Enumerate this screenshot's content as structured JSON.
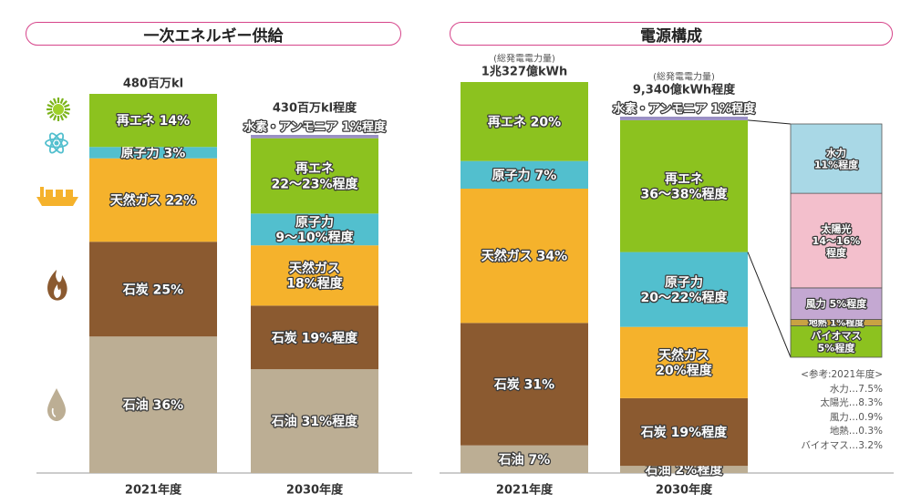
{
  "panels": {
    "left_title": "一次エネルギー供給",
    "right_title": "電源構成"
  },
  "reference": {
    "heading": "<参考:2021年度>",
    "items": [
      "水力…7.5%",
      "太陽光…8.3%",
      "風力…0.9%",
      "地熱…0.3%",
      "バイオマス…3.2%"
    ]
  },
  "icons": [
    "sun-icon",
    "atom-icon",
    "lng-ship-icon",
    "flame-icon",
    "oil-drop-icon"
  ],
  "colors": {
    "renewable": "#8cc21f",
    "nuclear": "#52bfce",
    "gas": "#f5b22c",
    "coal": "#8b5a30",
    "oil": "#bcae94",
    "hydrogen": "#9a90c4",
    "hydro": "#a9d8e6",
    "solar": "#f3bfcc",
    "wind": "#c4a8d2",
    "geothermal": "#c9a243",
    "biomass": "#8cc21f"
  },
  "chart_data": [
    {
      "type": "stacked-bar",
      "title": "一次エネルギー供給",
      "categories": [
        "2021年度",
        "2030年度"
      ],
      "totals": [
        "480百万kl",
        "430百万kl程度"
      ],
      "series": [
        {
          "name": "石油",
          "values": [
            36,
            31
          ],
          "labels": [
            "石油 36%",
            "石油 31%程度"
          ]
        },
        {
          "name": "石炭",
          "values": [
            25,
            19
          ],
          "labels": [
            "石炭 25%",
            "石炭 19%程度"
          ]
        },
        {
          "name": "天然ガス",
          "values": [
            22,
            18
          ],
          "labels": [
            "天然ガス 22%",
            "天然ガス\n18%程度"
          ]
        },
        {
          "name": "原子力",
          "values": [
            3,
            9.5
          ],
          "labels": [
            "原子力 3%",
            "原子力\n9〜10%程度"
          ]
        },
        {
          "name": "再エネ",
          "values": [
            14,
            22.5
          ],
          "labels": [
            "再エネ 14%",
            "再エネ\n22〜23%程度"
          ]
        },
        {
          "name": "水素・アンモニア",
          "values": [
            0,
            1
          ],
          "labels": [
            "",
            "水素・アンモニア 1%程度"
          ]
        }
      ]
    },
    {
      "type": "stacked-bar",
      "title": "電源構成",
      "categories": [
        "2021年度",
        "2030年度"
      ],
      "totals": [
        "1兆327億kWh",
        "9,340億kWh程度"
      ],
      "total_note": "(総発電電力量)",
      "series": [
        {
          "name": "石油",
          "values": [
            7,
            2
          ],
          "labels": [
            "石油 7%",
            "石油 2%程度"
          ]
        },
        {
          "name": "石炭",
          "values": [
            31,
            19
          ],
          "labels": [
            "石炭 31%",
            "石炭 19%程度"
          ]
        },
        {
          "name": "天然ガス",
          "values": [
            34,
            20
          ],
          "labels": [
            "天然ガス 34%",
            "天然ガス\n20%程度"
          ]
        },
        {
          "name": "原子力",
          "values": [
            7,
            21
          ],
          "labels": [
            "原子力 7%",
            "原子力\n20〜22%程度"
          ]
        },
        {
          "name": "再エネ",
          "values": [
            20,
            37
          ],
          "labels": [
            "再エネ 20%",
            "再エネ\n36〜38%程度"
          ]
        },
        {
          "name": "水素・アンモニア",
          "values": [
            0,
            1
          ],
          "labels": [
            "",
            "水素・アンモニア 1%程度"
          ]
        }
      ],
      "renewable_breakdown_2030": [
        {
          "name": "バイオマス",
          "value": 5,
          "label": "バイオマス\n5%程度"
        },
        {
          "name": "地熱",
          "value": 1,
          "label": "地熱 1%程度"
        },
        {
          "name": "風力",
          "value": 5,
          "label": "風力 5%程度"
        },
        {
          "name": "太陽光",
          "value": 15,
          "label": "太陽光\n14〜16%\n程度"
        },
        {
          "name": "水力",
          "value": 11,
          "label": "水力\n11%程度"
        }
      ]
    }
  ]
}
